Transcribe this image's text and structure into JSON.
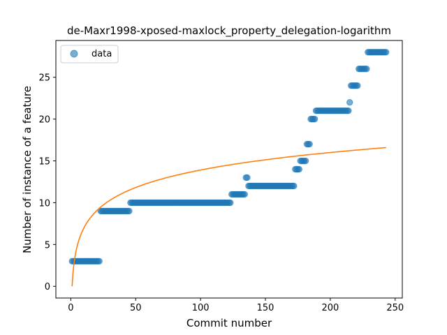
{
  "chart_data": {
    "type": "scatter",
    "title": "de-Maxr1998-xposed-maxlock_property_delegation-logarithm",
    "xlabel": "Commit number",
    "ylabel": "Number of instance of a feature",
    "xlim": [
      -11.5,
      255.5
    ],
    "ylim": [
      -1.4,
      29.4
    ],
    "xticks": [
      0,
      50,
      100,
      150,
      200,
      250
    ],
    "yticks": [
      0,
      5,
      10,
      15,
      20,
      25
    ],
    "grid": false,
    "legend_position": "top-left",
    "legend": [
      {
        "label": "data",
        "marker": "circle",
        "color": "#1f77b4"
      }
    ],
    "colors": {
      "scatter": "#1f77b4",
      "fit": "#ff7f0e"
    },
    "series": [
      {
        "name": "data",
        "kind": "scatter",
        "steps": [
          {
            "from": 1,
            "to": 22,
            "y": 3
          },
          {
            "from": 23,
            "to": 45,
            "y": 9
          },
          {
            "from": 46,
            "to": 123,
            "y": 10
          },
          {
            "from": 124,
            "to": 134,
            "y": 11
          },
          {
            "from": 135,
            "to": 136,
            "y": 13
          },
          {
            "from": 137,
            "to": 172,
            "y": 12
          },
          {
            "from": 173,
            "to": 176,
            "y": 14
          },
          {
            "from": 177,
            "to": 181,
            "y": 15
          },
          {
            "from": 182,
            "to": 184,
            "y": 17
          },
          {
            "from": 185,
            "to": 188,
            "y": 20
          },
          {
            "from": 189,
            "to": 214,
            "y": 21
          },
          {
            "from": 215,
            "to": 215,
            "y": 22
          },
          {
            "from": 216,
            "to": 221,
            "y": 24
          },
          {
            "from": 222,
            "to": 228,
            "y": 26
          },
          {
            "from": 229,
            "to": 243,
            "y": 28
          }
        ]
      },
      {
        "kind": "line",
        "function": "a*ln(x)",
        "a": 3.02,
        "x_range": [
          1,
          243
        ]
      }
    ]
  }
}
